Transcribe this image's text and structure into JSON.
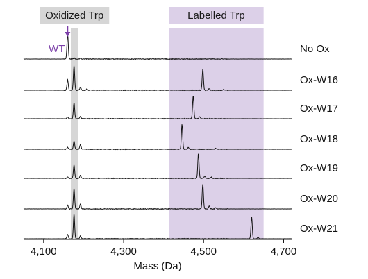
{
  "chart_data": {
    "type": "line",
    "xlabel": "Mass (Da)",
    "xlim": [
      4050,
      4720
    ],
    "x_ticks": [
      4100,
      4300,
      4500,
      4700
    ],
    "x_tick_labels": [
      "4,100",
      "4,300",
      "4,500",
      "4,700"
    ],
    "regions": [
      {
        "label": "Oxidized Trp",
        "x_range": [
          4168,
          4186
        ],
        "color": "#d6d6d6"
      },
      {
        "label": "Labelled Trp",
        "x_range": [
          4413,
          4650
        ],
        "color": "#dcd0e8"
      }
    ],
    "annotation": {
      "text": "WT",
      "x": 4160,
      "color": "#7b3fa8"
    },
    "series": [
      {
        "name": "No Ox",
        "peaks": [
          {
            "x": 4160,
            "rel_height": 1.0
          },
          {
            "x": 4176,
            "rel_height": 0.05
          },
          {
            "x": 4192,
            "rel_height": 0.04
          }
        ]
      },
      {
        "name": "Ox-W16",
        "peaks": [
          {
            "x": 4160,
            "rel_height": 0.42
          },
          {
            "x": 4176,
            "rel_height": 1.0
          },
          {
            "x": 4192,
            "rel_height": 0.12
          },
          {
            "x": 4208,
            "rel_height": 0.05
          },
          {
            "x": 4498,
            "rel_height": 0.85
          },
          {
            "x": 4514,
            "rel_height": 0.06
          },
          {
            "x": 4550,
            "rel_height": 0.04
          }
        ]
      },
      {
        "name": "Ox-W17",
        "peaks": [
          {
            "x": 4160,
            "rel_height": 0.07
          },
          {
            "x": 4176,
            "rel_height": 0.65
          },
          {
            "x": 4192,
            "rel_height": 0.1
          },
          {
            "x": 4474,
            "rel_height": 0.92
          },
          {
            "x": 4490,
            "rel_height": 0.08
          }
        ]
      },
      {
        "name": "Ox-W18",
        "peaks": [
          {
            "x": 4160,
            "rel_height": 0.08
          },
          {
            "x": 4176,
            "rel_height": 0.34
          },
          {
            "x": 4192,
            "rel_height": 0.2
          },
          {
            "x": 4446,
            "rel_height": 1.0
          },
          {
            "x": 4462,
            "rel_height": 0.07
          },
          {
            "x": 4530,
            "rel_height": 0.04
          }
        ]
      },
      {
        "name": "Ox-W19",
        "peaks": [
          {
            "x": 4160,
            "rel_height": 0.06
          },
          {
            "x": 4176,
            "rel_height": 0.55
          },
          {
            "x": 4192,
            "rel_height": 0.12
          },
          {
            "x": 4487,
            "rel_height": 1.0
          },
          {
            "x": 4503,
            "rel_height": 0.09
          },
          {
            "x": 4519,
            "rel_height": 0.05
          }
        ]
      },
      {
        "name": "Ox-W20",
        "peaks": [
          {
            "x": 4160,
            "rel_height": 0.15
          },
          {
            "x": 4176,
            "rel_height": 0.82
          },
          {
            "x": 4192,
            "rel_height": 0.2
          },
          {
            "x": 4498,
            "rel_height": 1.0
          },
          {
            "x": 4514,
            "rel_height": 0.12
          },
          {
            "x": 4530,
            "rel_height": 0.05
          }
        ]
      },
      {
        "name": "Ox-W21",
        "peaks": [
          {
            "x": 4160,
            "rel_height": 0.18
          },
          {
            "x": 4176,
            "rel_height": 1.0
          },
          {
            "x": 4192,
            "rel_height": 0.12
          },
          {
            "x": 4620,
            "rel_height": 0.88
          },
          {
            "x": 4636,
            "rel_height": 0.06
          }
        ]
      }
    ]
  }
}
